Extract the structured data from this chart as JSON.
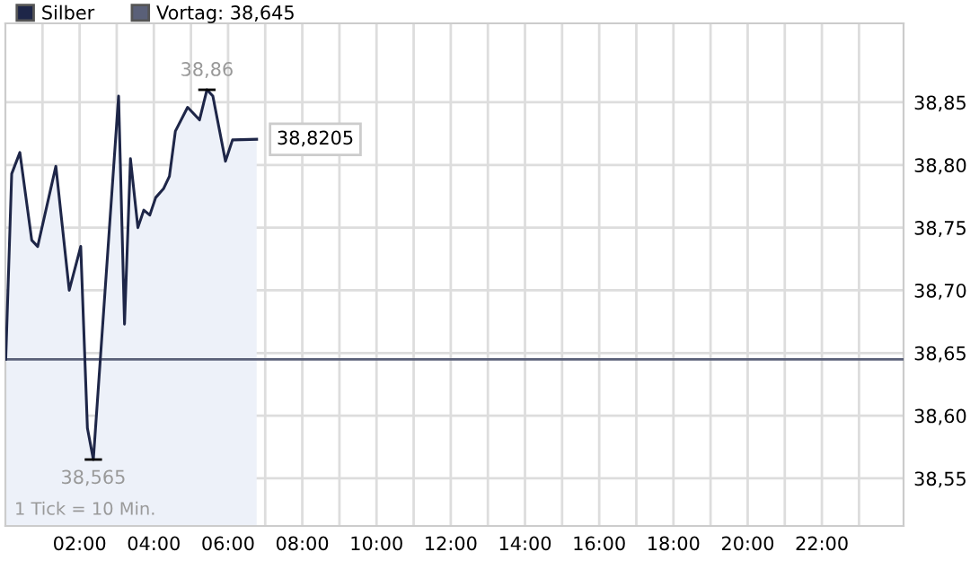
{
  "chart_data": {
    "type": "area",
    "x": [
      0.01,
      0.17,
      0.39,
      0.71,
      0.87,
      1.36,
      1.72,
      2.03,
      2.21,
      2.37,
      3.05,
      3.21,
      3.37,
      3.57,
      3.73,
      3.89,
      4.05,
      4.26,
      4.42,
      4.58,
      4.91,
      5.23,
      5.43,
      5.59,
      5.93,
      6.12,
      6.77
    ],
    "series": [
      {
        "name": "Silber",
        "color": "#1e2648",
        "values": [
          38.645,
          38.793,
          38.81,
          38.74,
          38.735,
          38.799,
          38.7,
          38.735,
          38.59,
          38.565,
          38.855,
          38.673,
          38.805,
          38.75,
          38.764,
          38.76,
          38.774,
          38.781,
          38.791,
          38.827,
          38.846,
          38.836,
          38.86,
          38.855,
          38.803,
          38.82,
          38.8205
        ]
      }
    ],
    "xlim": [
      0,
      24.2
    ],
    "xticks": [
      {
        "value": 1,
        "label": null
      },
      {
        "value": 2,
        "label": "02:00"
      },
      {
        "value": 3,
        "label": null
      },
      {
        "value": 4,
        "label": "04:00"
      },
      {
        "value": 5,
        "label": null
      },
      {
        "value": 6,
        "label": "06:00"
      },
      {
        "value": 7,
        "label": null
      },
      {
        "value": 8,
        "label": "08:00"
      },
      {
        "value": 9,
        "label": null
      },
      {
        "value": 10,
        "label": "10:00"
      },
      {
        "value": 11,
        "label": null
      },
      {
        "value": 12,
        "label": "12:00"
      },
      {
        "value": 13,
        "label": null
      },
      {
        "value": 14,
        "label": "14:00"
      },
      {
        "value": 15,
        "label": null
      },
      {
        "value": 16,
        "label": "16:00"
      },
      {
        "value": 17,
        "label": null
      },
      {
        "value": 18,
        "label": "18:00"
      },
      {
        "value": 19,
        "label": null
      },
      {
        "value": 20,
        "label": "20:00"
      },
      {
        "value": 21,
        "label": null
      },
      {
        "value": 22,
        "label": "22:00"
      },
      {
        "value": 23,
        "label": null
      }
    ],
    "ylim": [
      38.512,
      38.913
    ],
    "yticks": [
      {
        "value": 38.55,
        "label": "38,55"
      },
      {
        "value": 38.6,
        "label": "38,60"
      },
      {
        "value": 38.65,
        "label": "38,65"
      },
      {
        "value": 38.7,
        "label": "38,70"
      },
      {
        "value": 38.75,
        "label": "38,75"
      },
      {
        "value": 38.8,
        "label": "38,80"
      },
      {
        "value": 38.85,
        "label": "38,85"
      }
    ],
    "ref_lines": [
      {
        "axis": "y",
        "value": 38.645,
        "label": "Vortag: 38,645",
        "color": "#5a6078"
      }
    ],
    "annotations": [
      {
        "text": "38,86",
        "x": 5.43,
        "y": 38.86
      },
      {
        "text": "38,565",
        "x": 2.37,
        "y": 38.565
      },
      {
        "text": "38,8205",
        "x": 6.77,
        "y": 38.8205
      },
      "1 Tick = 10 Min."
    ],
    "grid": true,
    "legend": "top left"
  }
}
